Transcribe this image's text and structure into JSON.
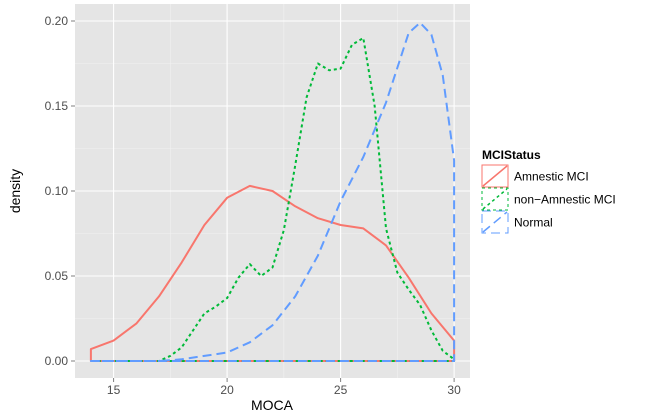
{
  "chart_data": {
    "type": "area",
    "xlabel": "MOCA",
    "ylabel": "density",
    "xlim": [
      13.3,
      30.7
    ],
    "ylim": [
      -0.01,
      0.21
    ],
    "x_ticks": [
      15,
      20,
      25,
      30
    ],
    "x_tick_labels": [
      "15",
      "20",
      "25",
      "30"
    ],
    "y_ticks": [
      0.0,
      0.05,
      0.1,
      0.15,
      0.2
    ],
    "y_tick_labels": [
      "0.00",
      "0.05",
      "0.10",
      "0.15",
      "0.20"
    ],
    "grid": true,
    "legend": {
      "title": "MCIStatus",
      "placement": "right"
    },
    "series": [
      {
        "name": "Amnestic MCI",
        "color": "#f8766d",
        "linestyle": "solid",
        "points": [
          [
            14,
            0.007
          ],
          [
            15,
            0.012
          ],
          [
            16,
            0.022
          ],
          [
            17,
            0.038
          ],
          [
            18,
            0.058
          ],
          [
            19,
            0.08
          ],
          [
            20,
            0.096
          ],
          [
            21,
            0.103
          ],
          [
            22,
            0.1
          ],
          [
            23,
            0.091
          ],
          [
            24,
            0.084
          ],
          [
            25,
            0.08
          ],
          [
            26,
            0.078
          ],
          [
            27,
            0.068
          ],
          [
            28,
            0.049
          ],
          [
            29,
            0.028
          ],
          [
            30,
            0.012
          ]
        ]
      },
      {
        "name": "non−Amnestic MCI",
        "color": "#00ba38",
        "linestyle": "dotted",
        "points": [
          [
            14,
            0.0
          ],
          [
            17,
            0.0
          ],
          [
            17.5,
            0.003
          ],
          [
            18,
            0.008
          ],
          [
            18.5,
            0.018
          ],
          [
            19,
            0.028
          ],
          [
            19.5,
            0.032
          ],
          [
            20,
            0.037
          ],
          [
            20.5,
            0.049
          ],
          [
            21,
            0.057
          ],
          [
            21.5,
            0.05
          ],
          [
            22,
            0.055
          ],
          [
            22.5,
            0.077
          ],
          [
            23,
            0.115
          ],
          [
            23.5,
            0.155
          ],
          [
            24,
            0.175
          ],
          [
            24.5,
            0.171
          ],
          [
            25,
            0.172
          ],
          [
            25.5,
            0.186
          ],
          [
            26,
            0.19
          ],
          [
            26.5,
            0.15
          ],
          [
            27,
            0.078
          ],
          [
            27.5,
            0.052
          ],
          [
            28,
            0.042
          ],
          [
            28.5,
            0.033
          ],
          [
            29,
            0.018
          ],
          [
            29.5,
            0.006
          ],
          [
            30,
            0.001
          ]
        ]
      },
      {
        "name": "Normal",
        "color": "#619cff",
        "linestyle": "dashed",
        "points": [
          [
            14,
            0.0
          ],
          [
            17,
            0.0
          ],
          [
            18,
            0.001
          ],
          [
            19,
            0.003
          ],
          [
            20,
            0.005
          ],
          [
            21,
            0.011
          ],
          [
            22,
            0.021
          ],
          [
            23,
            0.038
          ],
          [
            24,
            0.062
          ],
          [
            25,
            0.094
          ],
          [
            26,
            0.12
          ],
          [
            27,
            0.152
          ],
          [
            28,
            0.193
          ],
          [
            28.5,
            0.199
          ],
          [
            29,
            0.192
          ],
          [
            29.5,
            0.168
          ],
          [
            30,
            0.118
          ]
        ]
      }
    ]
  }
}
